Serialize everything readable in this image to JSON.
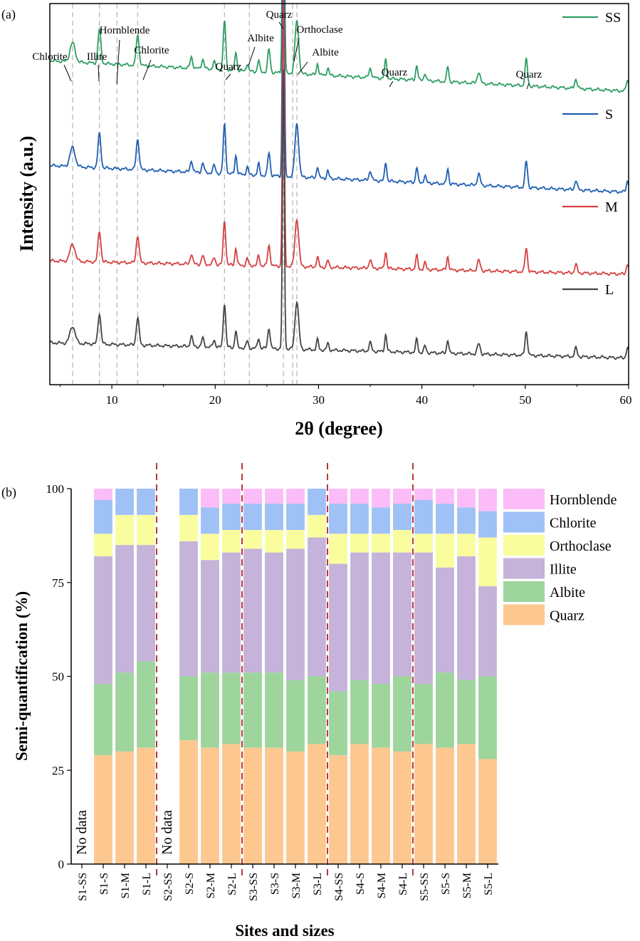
{
  "chart_data": [
    {
      "panel_label": "(a)",
      "type": "line",
      "xlabel": "2θ (degree)",
      "ylabel": "Intensity (a.u.)",
      "xlim": [
        4,
        60
      ],
      "xticks": [
        "10",
        "20",
        "30",
        "40",
        "50",
        "60"
      ],
      "reference_lines_2theta": [
        6.2,
        8.8,
        10.5,
        12.5,
        20.9,
        23.3,
        26.6,
        27.5,
        27.9
      ],
      "peak_labels": [
        {
          "text": "Chlorite",
          "x": 6.2
        },
        {
          "text": "Illite",
          "x": 8.8
        },
        {
          "text": "Hornblende",
          "x": 10.5
        },
        {
          "text": "Chlorite",
          "x": 12.5
        },
        {
          "text": "Quarz",
          "x": 20.9
        },
        {
          "text": "Albite",
          "x": 23.3
        },
        {
          "text": "Quarz",
          "x": 26.6
        },
        {
          "text": "Orthoclase",
          "x": 27.5
        },
        {
          "text": "Albite",
          "x": 27.9
        },
        {
          "text": "Quarz",
          "x": 36.5
        },
        {
          "text": "Quarz",
          "x": 50.1
        }
      ],
      "peaks": [
        {
          "x": 6.2,
          "h": 0.05,
          "w": 0.25
        },
        {
          "x": 8.8,
          "h": 0.09,
          "w": 0.14
        },
        {
          "x": 12.5,
          "h": 0.08,
          "w": 0.14
        },
        {
          "x": 17.7,
          "h": 0.03,
          "w": 0.12
        },
        {
          "x": 18.8,
          "h": 0.025,
          "w": 0.12
        },
        {
          "x": 19.9,
          "h": 0.02,
          "w": 0.12
        },
        {
          "x": 20.9,
          "h": 0.13,
          "w": 0.12
        },
        {
          "x": 22.0,
          "h": 0.05,
          "w": 0.1
        },
        {
          "x": 23.1,
          "h": 0.02,
          "w": 0.1
        },
        {
          "x": 24.2,
          "h": 0.03,
          "w": 0.1
        },
        {
          "x": 25.2,
          "h": 0.06,
          "w": 0.12
        },
        {
          "x": 26.6,
          "h": 0.82,
          "w": 0.09
        },
        {
          "x": 27.9,
          "h": 0.14,
          "w": 0.18
        },
        {
          "x": 29.9,
          "h": 0.03,
          "w": 0.1
        },
        {
          "x": 30.9,
          "h": 0.02,
          "w": 0.1
        },
        {
          "x": 35.0,
          "h": 0.025,
          "w": 0.12
        },
        {
          "x": 36.5,
          "h": 0.05,
          "w": 0.1
        },
        {
          "x": 39.5,
          "h": 0.04,
          "w": 0.1
        },
        {
          "x": 40.3,
          "h": 0.02,
          "w": 0.1
        },
        {
          "x": 42.5,
          "h": 0.04,
          "w": 0.1
        },
        {
          "x": 45.5,
          "h": 0.03,
          "w": 0.14
        },
        {
          "x": 50.1,
          "h": 0.07,
          "w": 0.12
        },
        {
          "x": 54.9,
          "h": 0.025,
          "w": 0.12
        },
        {
          "x": 59.9,
          "h": 0.03,
          "w": 0.12
        }
      ],
      "series": [
        {
          "name": "SS",
          "color": "#2e9e63",
          "baseline_start": 0.85,
          "baseline_end": 0.77,
          "peak_scale": 1.0
        },
        {
          "name": "S",
          "color": "#1f5fb3",
          "baseline_start": 0.575,
          "baseline_end": 0.505,
          "peak_scale": 1.0
        },
        {
          "name": "M",
          "color": "#d64040",
          "baseline_start": 0.325,
          "baseline_end": 0.29,
          "peak_scale": 0.9
        },
        {
          "name": "L",
          "color": "#444444",
          "baseline_start": 0.11,
          "baseline_end": 0.07,
          "peak_scale": 0.9
        }
      ]
    },
    {
      "panel_label": "(b)",
      "type": "stacked-bar",
      "xlabel": "Sites and sizes",
      "ylabel": "Semi-quantification (%)",
      "ylim": [
        0,
        100
      ],
      "yticks": [
        "0",
        "25",
        "50",
        "75",
        "100"
      ],
      "no_data_label": "No data",
      "categories": [
        "S1-SS",
        "S1-S",
        "S1-M",
        "S1-L",
        "S2-SS",
        "S2-S",
        "S2-M",
        "S2-L",
        "S3-SS",
        "S3-S",
        "S3-M",
        "S3-L",
        "S4-SS",
        "S4-S",
        "S4-M",
        "S4-L",
        "S5-SS",
        "S5-S",
        "S5-M",
        "S5-L"
      ],
      "no_data": [
        "S1-SS",
        "S2-SS"
      ],
      "site_separators_after": [
        "S1-L",
        "S2-L",
        "S3-L",
        "S4-L"
      ],
      "series": [
        {
          "name": "Quarz",
          "color": "#fcc890",
          "values": [
            0,
            29,
            30,
            31,
            0,
            33,
            31,
            32,
            31,
            31,
            30,
            32,
            29,
            32,
            31,
            30,
            32,
            31,
            32,
            28
          ]
        },
        {
          "name": "Albite",
          "color": "#9dd59d",
          "values": [
            0,
            19,
            21,
            23,
            0,
            17,
            20,
            19,
            20,
            20,
            19,
            18,
            17,
            17,
            17,
            20,
            16,
            20,
            17,
            22
          ]
        },
        {
          "name": "Illite",
          "color": "#c5b3d9",
          "values": [
            0,
            34,
            34,
            31,
            0,
            36,
            30,
            32,
            33,
            32,
            35,
            37,
            34,
            34,
            35,
            33,
            35,
            28,
            33,
            24
          ]
        },
        {
          "name": "Orthoclase",
          "color": "#fafd9e",
          "values": [
            0,
            6,
            8,
            8,
            0,
            7,
            7,
            6,
            5,
            6,
            5,
            6,
            8,
            5,
            5,
            6,
            5,
            9,
            6,
            13
          ]
        },
        {
          "name": "Chlorite",
          "color": "#a0c1f6",
          "values": [
            0,
            9,
            7,
            7,
            0,
            7,
            7,
            7,
            7,
            7,
            7,
            7,
            8,
            8,
            7,
            7,
            9,
            8,
            7,
            7
          ]
        },
        {
          "name": "Hornblende",
          "color": "#fbbcf7",
          "values": [
            0,
            3,
            0,
            0,
            0,
            0,
            5,
            4,
            4,
            4,
            4,
            0,
            4,
            4,
            5,
            4,
            3,
            4,
            5,
            6
          ]
        }
      ],
      "legend_order": [
        "Hornblende",
        "Chlorite",
        "Orthoclase",
        "Illite",
        "Albite",
        "Quarz"
      ]
    }
  ]
}
